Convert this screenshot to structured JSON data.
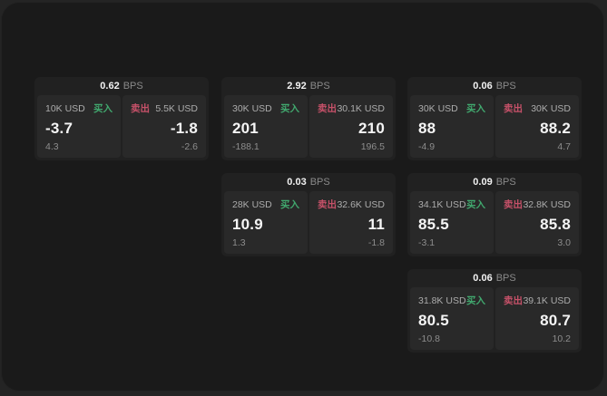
{
  "labels": {
    "bps": "BPS",
    "buy": "买入",
    "sell": "卖出"
  },
  "colors": {
    "buy_green": "#41a86e",
    "sell_red": "#c65169",
    "window_bg": "#1a1a1a",
    "card_bg": "#212121",
    "panel_bg": "#292929"
  },
  "cards": [
    {
      "spread": "0.62",
      "buy": {
        "amount": "10K USD",
        "price": "-3.7",
        "delta": "4.3"
      },
      "sell": {
        "amount": "5.5K USD",
        "price": "-1.8",
        "delta": "-2.6"
      }
    },
    {
      "spread": "2.92",
      "buy": {
        "amount": "30K USD",
        "price": "201",
        "delta": "-188.1"
      },
      "sell": {
        "amount": "30.1K USD",
        "price": "210",
        "delta": "196.5"
      }
    },
    {
      "spread": "0.06",
      "buy": {
        "amount": "30K USD",
        "price": "88",
        "delta": "-4.9"
      },
      "sell": {
        "amount": "30K USD",
        "price": "88.2",
        "delta": "4.7"
      }
    },
    {
      "spread": "0.03",
      "buy": {
        "amount": "28K USD",
        "price": "10.9",
        "delta": "1.3"
      },
      "sell": {
        "amount": "32.6K USD",
        "price": "11",
        "delta": "-1.8"
      }
    },
    {
      "spread": "0.09",
      "buy": {
        "amount": "34.1K USD",
        "price": "85.5",
        "delta": "-3.1"
      },
      "sell": {
        "amount": "32.8K USD",
        "price": "85.8",
        "delta": "3.0"
      }
    },
    {
      "spread": "0.06",
      "buy": {
        "amount": "31.8K USD",
        "price": "80.5",
        "delta": "-10.8"
      },
      "sell": {
        "amount": "39.1K USD",
        "price": "80.7",
        "delta": "10.2"
      }
    }
  ]
}
